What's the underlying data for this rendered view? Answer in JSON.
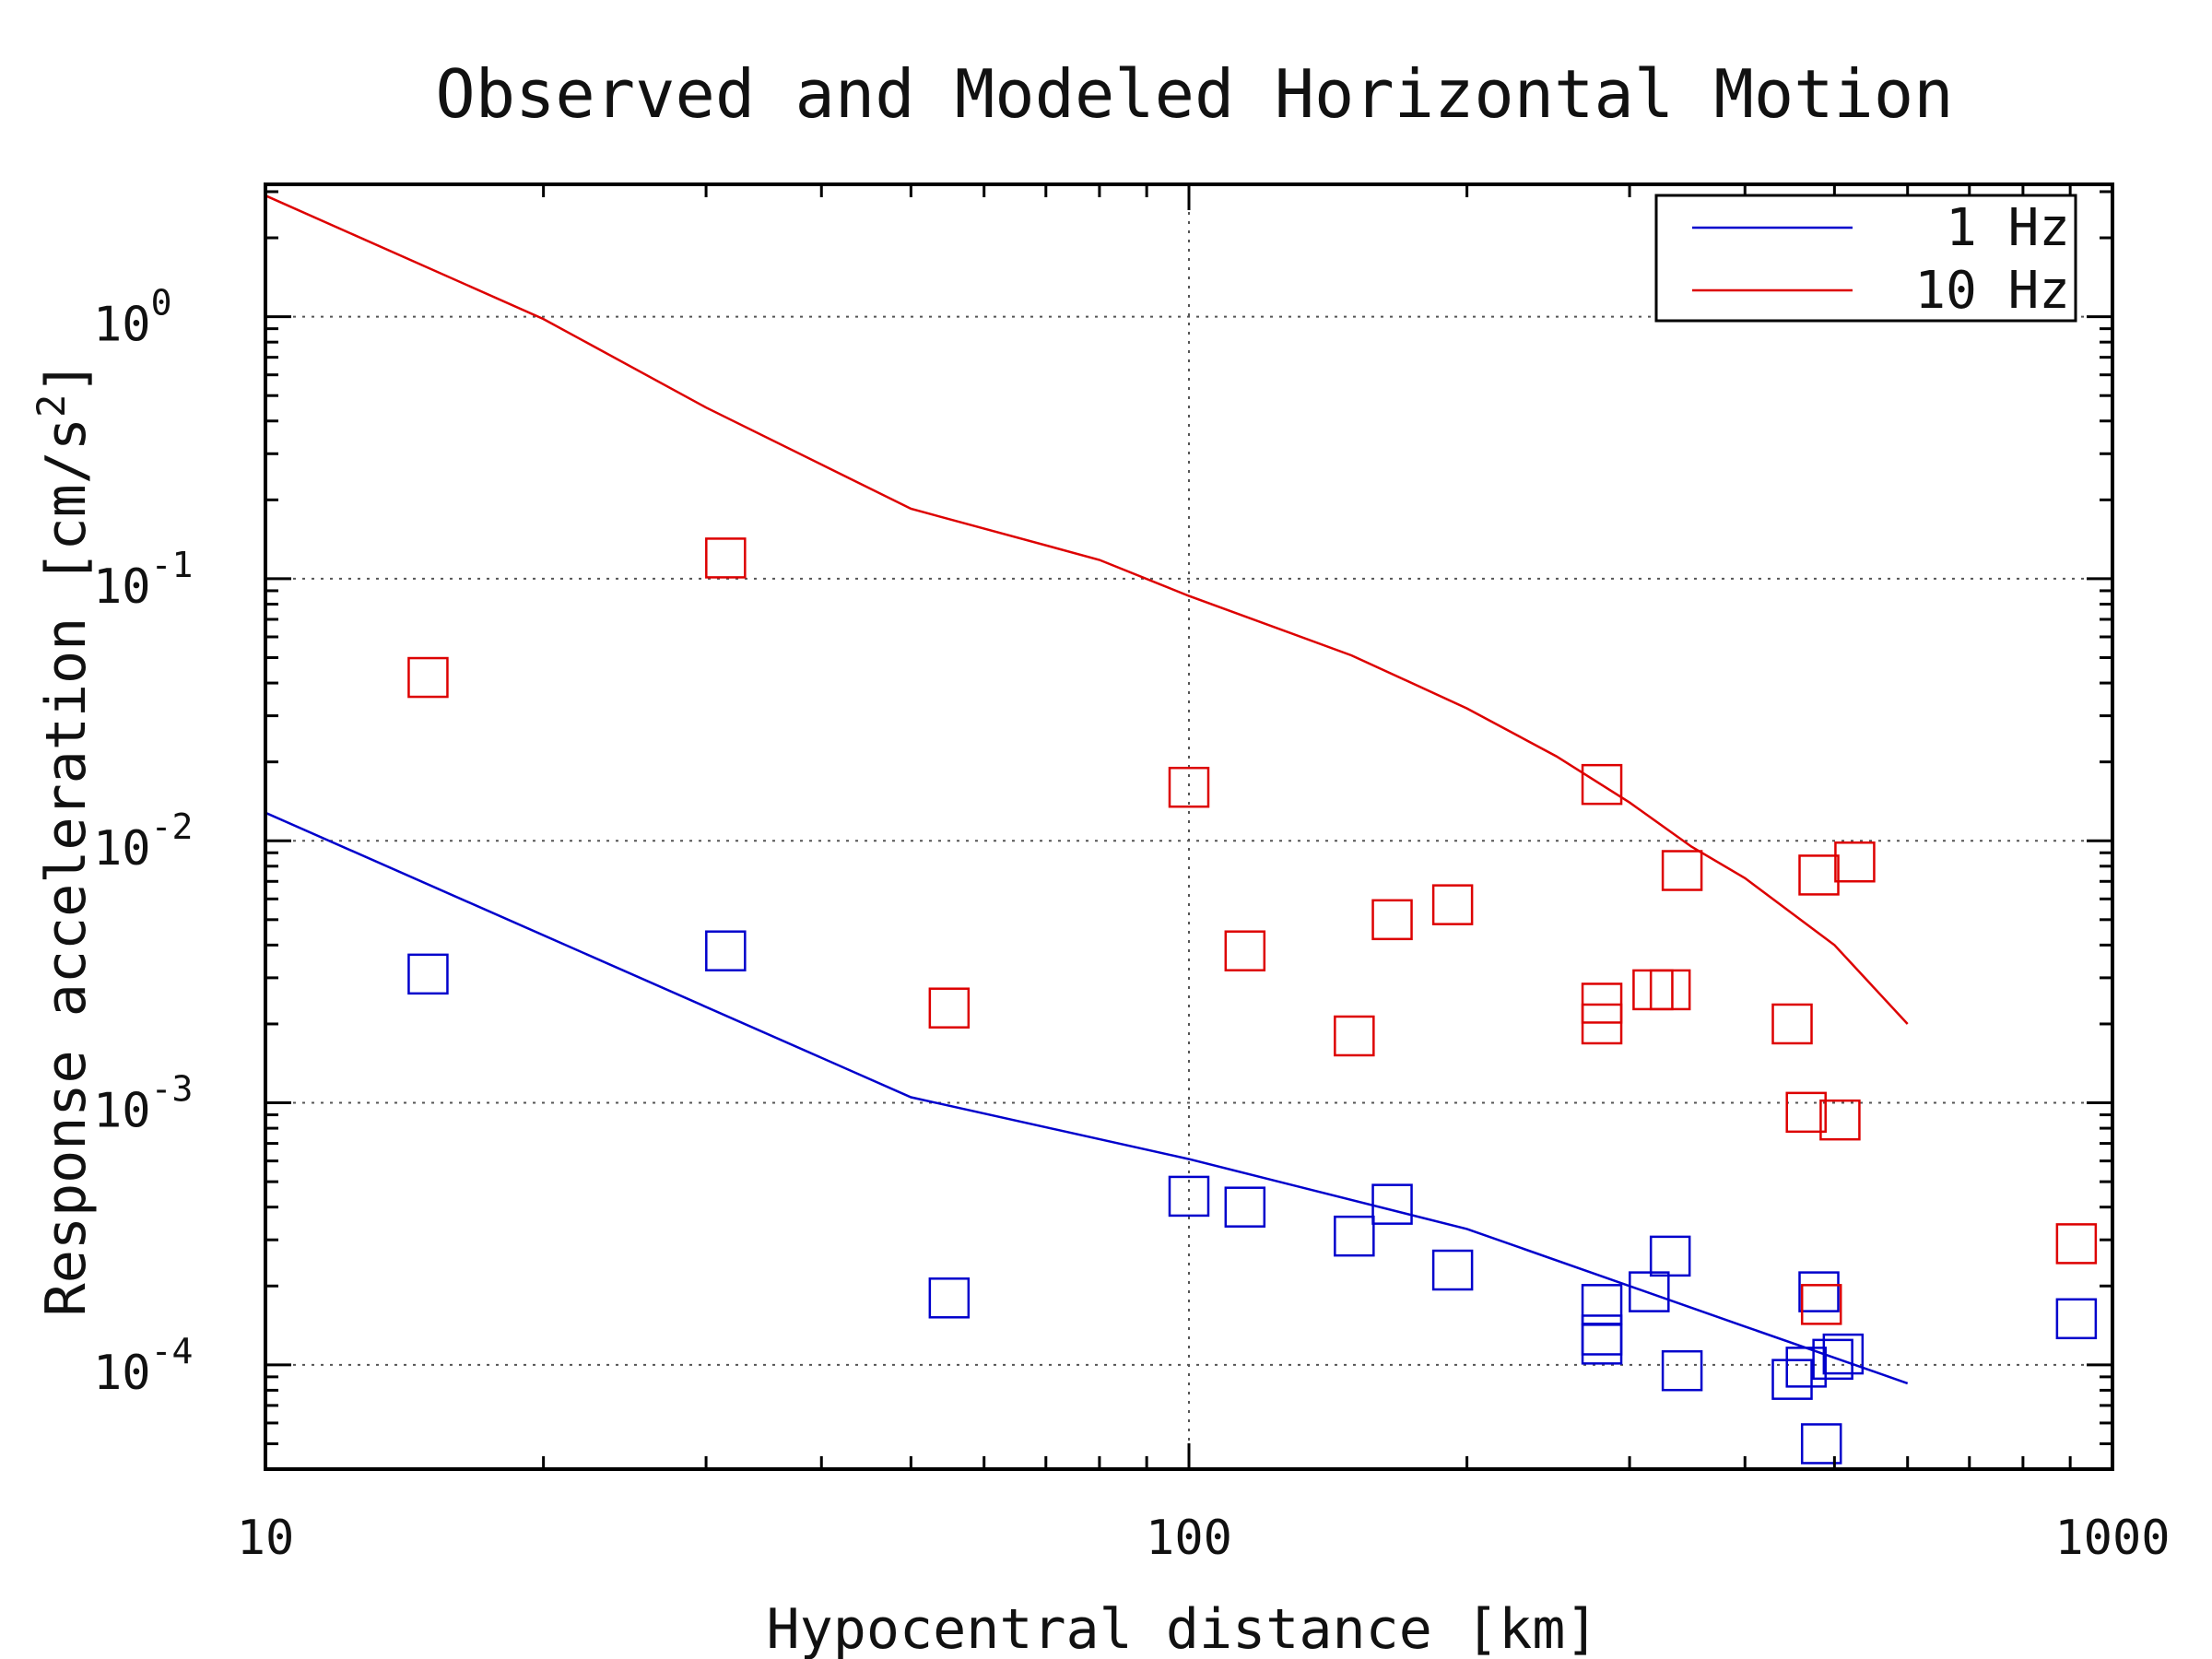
{
  "chart_data": {
    "type": "scatter",
    "title": "Observed and Modeled Horizontal Motion",
    "xlabel": "Hypocentral distance [km]",
    "ylabel": "Response acceleration [cm/s",
    "ylabel_sup": "2",
    "ylabel_end": "]",
    "xscale": "log",
    "yscale": "log",
    "xlim": [
      10,
      1000
    ],
    "ylim": [
      4e-05,
      3.2
    ],
    "xticks": [
      {
        "value": 10,
        "label": "10"
      },
      {
        "value": 100,
        "label": "100"
      },
      {
        "value": 1000,
        "label": "1000"
      }
    ],
    "yticks": [
      {
        "value": 0.0001,
        "base": "10",
        "exp": "-4"
      },
      {
        "value": 0.001,
        "base": "10",
        "exp": "-3"
      },
      {
        "value": 0.01,
        "base": "10",
        "exp": "-2"
      },
      {
        "value": 0.1,
        "base": "10",
        "exp": "-1"
      },
      {
        "value": 1,
        "base": "10",
        "exp": "0"
      }
    ],
    "grid": true,
    "legend_position": "top-right",
    "series": [
      {
        "name": "1 Hz",
        "color": "#0000cc",
        "model_line": [
          {
            "x": 10,
            "y": 0.0128
          },
          {
            "x": 50,
            "y": 0.00105
          },
          {
            "x": 100,
            "y": 0.00061
          },
          {
            "x": 200,
            "y": 0.00033
          },
          {
            "x": 400,
            "y": 0.00014
          },
          {
            "x": 600,
            "y": 8.5e-05
          }
        ],
        "observed": [
          {
            "x": 15,
            "y": 0.0031
          },
          {
            "x": 31.5,
            "y": 0.0038
          },
          {
            "x": 55,
            "y": 0.00018
          },
          {
            "x": 100,
            "y": 0.00044
          },
          {
            "x": 115,
            "y": 0.0004
          },
          {
            "x": 151,
            "y": 0.00031
          },
          {
            "x": 166,
            "y": 0.00041
          },
          {
            "x": 193,
            "y": 0.00023
          },
          {
            "x": 280,
            "y": 0.00017
          },
          {
            "x": 280,
            "y": 0.00013
          },
          {
            "x": 280,
            "y": 0.00012
          },
          {
            "x": 315,
            "y": 0.00019
          },
          {
            "x": 332,
            "y": 0.00026
          },
          {
            "x": 342,
            "y": 9.5e-05
          },
          {
            "x": 450,
            "y": 8.8e-05
          },
          {
            "x": 466,
            "y": 9.8e-05
          },
          {
            "x": 481,
            "y": 0.00019
          },
          {
            "x": 484,
            "y": 5e-05
          },
          {
            "x": 498,
            "y": 0.000105
          },
          {
            "x": 511,
            "y": 0.00011
          },
          {
            "x": 914,
            "y": 0.00015
          }
        ]
      },
      {
        "name": "10 Hz",
        "color": "#dd0000",
        "model_line": [
          {
            "x": 10,
            "y": 2.9
          },
          {
            "x": 20,
            "y": 0.98
          },
          {
            "x": 30,
            "y": 0.45
          },
          {
            "x": 50,
            "y": 0.185
          },
          {
            "x": 80,
            "y": 0.118
          },
          {
            "x": 100,
            "y": 0.086
          },
          {
            "x": 150,
            "y": 0.051
          },
          {
            "x": 200,
            "y": 0.032
          },
          {
            "x": 250,
            "y": 0.021
          },
          {
            "x": 300,
            "y": 0.014
          },
          {
            "x": 350,
            "y": 0.0095
          },
          {
            "x": 400,
            "y": 0.0072
          },
          {
            "x": 500,
            "y": 0.004
          },
          {
            "x": 600,
            "y": 0.002
          }
        ],
        "observed": [
          {
            "x": 15,
            "y": 0.042
          },
          {
            "x": 31.5,
            "y": 0.12
          },
          {
            "x": 55,
            "y": 0.0023
          },
          {
            "x": 100,
            "y": 0.016
          },
          {
            "x": 115,
            "y": 0.0038
          },
          {
            "x": 151,
            "y": 0.0018
          },
          {
            "x": 166,
            "y": 0.005
          },
          {
            "x": 193,
            "y": 0.0057
          },
          {
            "x": 280,
            "y": 0.0164
          },
          {
            "x": 280,
            "y": 0.0024
          },
          {
            "x": 280,
            "y": 0.002
          },
          {
            "x": 318,
            "y": 0.0027
          },
          {
            "x": 332,
            "y": 0.0027
          },
          {
            "x": 342,
            "y": 0.0077
          },
          {
            "x": 450,
            "y": 0.002
          },
          {
            "x": 466,
            "y": 0.00092
          },
          {
            "x": 481,
            "y": 0.0074
          },
          {
            "x": 484,
            "y": 0.00017
          },
          {
            "x": 507,
            "y": 0.00086
          },
          {
            "x": 526,
            "y": 0.0083
          },
          {
            "x": 914,
            "y": 0.00029
          }
        ]
      }
    ]
  }
}
